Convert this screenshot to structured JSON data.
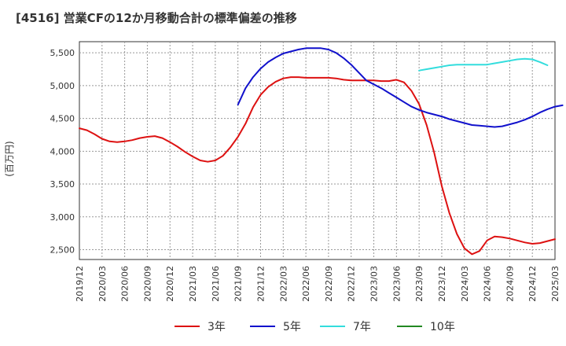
{
  "chart_data": {
    "type": "line",
    "title": "[4516]  営業CFの12か月移動合計の標準偏差の推移",
    "ylabel": "(百万円)",
    "xlabel": "",
    "ylim": [
      2350,
      5670
    ],
    "yticks": [
      2500,
      3000,
      3500,
      4000,
      4500,
      5000,
      5500
    ],
    "ytick_labels": [
      "2,500",
      "3,000",
      "3,500",
      "4,000",
      "4,500",
      "5,000",
      "5,500"
    ],
    "xtick_labels": [
      "2019/12",
      "2020/03",
      "2020/06",
      "2020/09",
      "2020/12",
      "2021/03",
      "2021/06",
      "2021/09",
      "2021/12",
      "2022/03",
      "2022/06",
      "2022/09",
      "2022/12",
      "2023/03",
      "2023/06",
      "2023/09",
      "2023/12",
      "2024/03",
      "2024/06",
      "2024/09",
      "2024/12",
      "2025/03"
    ],
    "x_start": "2019/12",
    "x_step": "1 month",
    "grid": true,
    "legend_position": "bottom",
    "series": [
      {
        "name": "3年",
        "color": "#dd1111",
        "start": "2019/12",
        "values": [
          4350,
          4320,
          4260,
          4190,
          4150,
          4140,
          4150,
          4170,
          4200,
          4220,
          4230,
          4200,
          4140,
          4070,
          3990,
          3920,
          3860,
          3840,
          3860,
          3930,
          4060,
          4220,
          4420,
          4670,
          4860,
          4980,
          5060,
          5110,
          5130,
          5130,
          5120,
          5120,
          5120,
          5120,
          5110,
          5090,
          5080,
          5080,
          5080,
          5080,
          5070,
          5070,
          5090,
          5050,
          4920,
          4720,
          4400,
          3980,
          3470,
          3060,
          2740,
          2520,
          2430,
          2480,
          2640,
          2700,
          2690,
          2670,
          2640,
          2610,
          2590,
          2600,
          2630,
          2660
        ]
      },
      {
        "name": "5年",
        "color": "#1111cc",
        "start": "2021/09",
        "values": [
          4710,
          4960,
          5130,
          5260,
          5360,
          5430,
          5490,
          5520,
          5550,
          5570,
          5570,
          5570,
          5550,
          5500,
          5420,
          5320,
          5200,
          5080,
          5020,
          4960,
          4890,
          4820,
          4750,
          4680,
          4630,
          4590,
          4560,
          4530,
          4490,
          4460,
          4430,
          4400,
          4390,
          4380,
          4370,
          4380,
          4410,
          4440,
          4480,
          4530,
          4590,
          4640,
          4680,
          4700
        ]
      },
      {
        "name": "7年",
        "color": "#33dddd",
        "start": "2023/09",
        "values": [
          5230,
          5250,
          5270,
          5290,
          5310,
          5320,
          5320,
          5320,
          5320,
          5320,
          5340,
          5360,
          5380,
          5400,
          5410,
          5400,
          5360,
          5310
        ]
      },
      {
        "name": "10年",
        "color": "#228822",
        "start": "2025/03",
        "values": []
      }
    ]
  }
}
